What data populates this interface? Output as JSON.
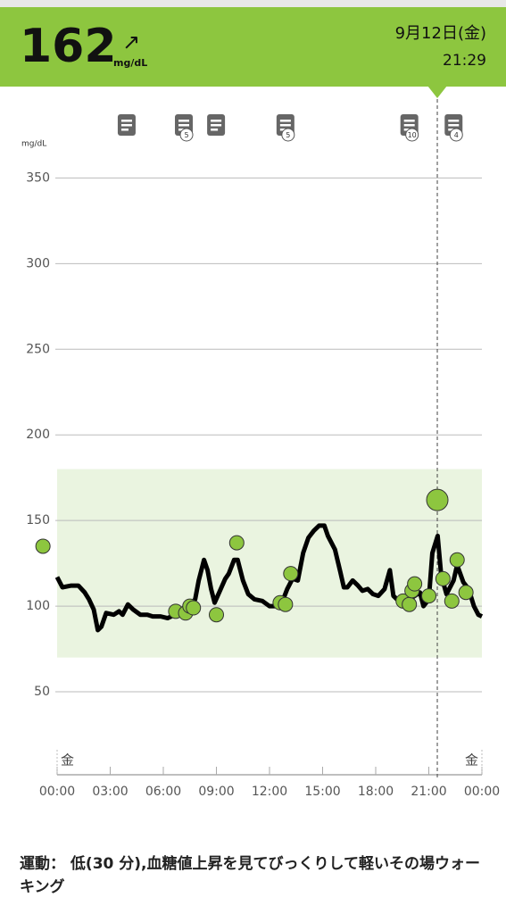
{
  "header": {
    "value": 162,
    "trend": "↗",
    "unit": "mg/dL",
    "date": "9月12日(金)",
    "time": "21:29"
  },
  "chart_data": {
    "type": "line",
    "y_label": "mg/dL",
    "xlim": [
      0,
      24
    ],
    "ylim": [
      0,
      370
    ],
    "xticks": [
      {
        "value": 0,
        "label": "00:00"
      },
      {
        "value": 3,
        "label": "03:00"
      },
      {
        "value": 6,
        "label": "06:00"
      },
      {
        "value": 9,
        "label": "09:00"
      },
      {
        "value": 12,
        "label": "12:00"
      },
      {
        "value": 15,
        "label": "15:00"
      },
      {
        "value": 18,
        "label": "18:00"
      },
      {
        "value": 21,
        "label": "21:00"
      },
      {
        "value": 24,
        "label": "00:00"
      }
    ],
    "yticks": [
      50,
      100,
      150,
      200,
      250,
      300,
      350
    ],
    "grid": true,
    "target_range": [
      70,
      180
    ],
    "day_labels": [
      "金",
      "金"
    ],
    "now_x": 21.48,
    "series": [
      {
        "color": "#000000",
        "x": [
          0,
          0.3,
          0.8,
          1.2,
          1.56,
          1.8,
          2.07,
          2.3,
          2.5,
          2.77,
          3.2,
          3.5,
          3.7,
          4.0,
          4.3,
          4.7,
          5.1,
          5.4,
          5.85,
          6.25,
          6.65,
          7.1,
          7.46,
          7.8,
          8.0,
          8.3,
          8.5,
          8.7,
          8.9,
          9.2,
          9.5,
          9.7,
          10.0,
          10.2,
          10.5,
          10.8,
          11.15,
          11.6,
          12.0,
          12.4,
          12.7,
          13.0,
          13.3,
          13.6,
          13.9,
          14.2,
          14.5,
          14.8,
          15.1,
          15.3,
          15.7,
          16.0,
          16.2,
          16.4,
          16.7,
          17.0,
          17.25,
          17.55,
          17.85,
          18.15,
          18.5,
          18.8,
          19.0,
          19.3,
          19.55,
          19.9,
          20.2,
          20.5,
          20.7,
          21.0,
          21.2,
          21.5,
          21.7,
          22.0,
          22.4,
          22.6,
          22.95,
          23.25,
          23.55,
          23.8,
          24.0
        ],
        "values": [
          117,
          111,
          112,
          112,
          108,
          104,
          98,
          86,
          88,
          96,
          95,
          97,
          95,
          101,
          98,
          95,
          95,
          94,
          94,
          93,
          95,
          98,
          100,
          104,
          115,
          127,
          121,
          110,
          102,
          109,
          116,
          119,
          127,
          127,
          115,
          107,
          104,
          103,
          100,
          100,
          102,
          110,
          116,
          115,
          131,
          140,
          144,
          147,
          147,
          141,
          133,
          120,
          111,
          111,
          115,
          112,
          109,
          110,
          107,
          106,
          110,
          121,
          106,
          103,
          103,
          104,
          106,
          108,
          100,
          104,
          131,
          141,
          118,
          107,
          115,
          124,
          114,
          110,
          100,
          95,
          94
        ]
      },
      {
        "color": "#8dc63f",
        "x": [
          -0.8,
          6.7,
          7.26,
          7.5,
          7.7,
          9.0,
          10.15,
          12.6,
          12.9,
          13.2,
          19.55,
          19.9,
          20.05,
          20.2,
          21.0,
          21.8,
          22.3,
          22.6,
          23.1
        ],
        "values": [
          135,
          97,
          96,
          100,
          99,
          95,
          137,
          102,
          101,
          119,
          103,
          101,
          109,
          113,
          106,
          116,
          103,
          127,
          108
        ]
      }
    ],
    "notes": [
      {
        "x": 3.93
      },
      {
        "x": 7.16,
        "count": 5
      },
      {
        "x": 8.98
      },
      {
        "x": 12.9,
        "count": 5
      },
      {
        "x": 19.9,
        "count": 10
      },
      {
        "x": 22.4,
        "count": 4
      }
    ]
  },
  "note_text": "運動： 低(30 分),血糖値上昇を見てびっくりして軽いその場ウォーキング"
}
